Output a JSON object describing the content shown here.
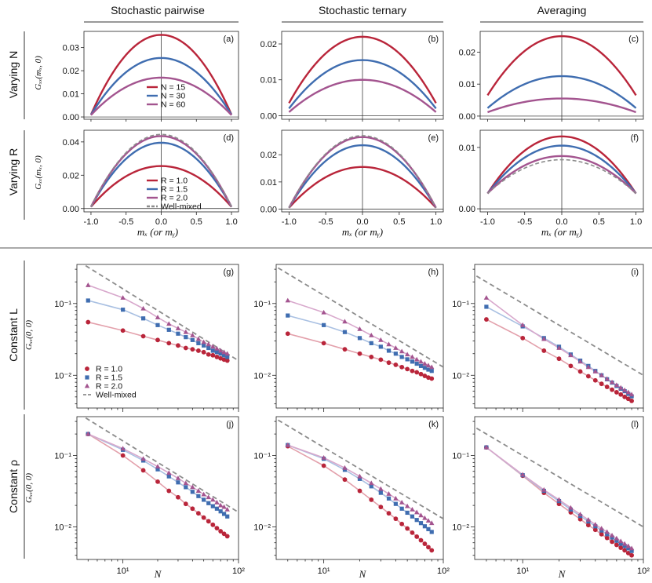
{
  "colors": {
    "red": "#b9253a",
    "blue": "#3f6db0",
    "purple": "#a3548f",
    "gray": "#8c8c8c",
    "lightred": "#e3a0ab",
    "lightblue": "#a9c0e2",
    "lightpurple": "#d8a8cc"
  },
  "columns": [
    "Stochastic pairwise",
    "Stochastic ternary",
    "Averaging"
  ],
  "rows": [
    "Varying N",
    "Varying R",
    "Constant L",
    "Constant ρ"
  ],
  "ylabels": {
    "top": "Gₓₓ(mₓ, 0)",
    "bottom": "Gₓₓ(0, 0)"
  },
  "xlabels": {
    "top": "mₓ (or mᵧ)",
    "bottom": "N"
  },
  "legends": {
    "varyingN": [
      "N = 15",
      "N = 30",
      "N = 60"
    ],
    "varyingR": [
      "R = 1.0",
      "R = 1.5",
      "R = 2.0",
      "Well-mixed"
    ],
    "bottom": [
      "R = 1.0",
      "R = 1.5",
      "R = 2.0",
      "Well-mixed"
    ]
  },
  "chart_data": [
    {
      "id": "a",
      "label": "(a)",
      "type": "line",
      "xlim": [
        -1.1,
        1.1
      ],
      "ylim": [
        -0.001,
        0.037
      ],
      "yticks": [
        0.0,
        0.01,
        0.02,
        0.03
      ],
      "ytick_labels": [
        "0.00",
        "0.01",
        "0.02",
        "0.03"
      ],
      "series": [
        {
          "name": "N = 15",
          "peak": 0.0355,
          "edge": 0.001
        },
        {
          "name": "N = 30",
          "peak": 0.0255,
          "edge": 0.001
        },
        {
          "name": "N = 60",
          "peak": 0.017,
          "edge": 0.0008
        }
      ]
    },
    {
      "id": "b",
      "label": "(b)",
      "type": "line",
      "xlim": [
        -1.1,
        1.1
      ],
      "ylim": [
        -0.001,
        0.0235
      ],
      "yticks": [
        0.0,
        0.01,
        0.02
      ],
      "ytick_labels": [
        "0.00",
        "0.01",
        "0.02"
      ],
      "series": [
        {
          "name": "N = 15",
          "peak": 0.022,
          "edge": 0.0035
        },
        {
          "name": "N = 30",
          "peak": 0.0155,
          "edge": 0.002
        },
        {
          "name": "N = 60",
          "peak": 0.01,
          "edge": 0.001
        }
      ]
    },
    {
      "id": "c",
      "label": "(c)",
      "type": "line",
      "xlim": [
        -1.1,
        1.1
      ],
      "ylim": [
        -0.001,
        0.0265
      ],
      "yticks": [
        0.0,
        0.01,
        0.02
      ],
      "ytick_labels": [
        "0.00",
        "0.01",
        "0.02"
      ],
      "series": [
        {
          "name": "N = 15",
          "peak": 0.025,
          "edge": 0.0065
        },
        {
          "name": "N = 30",
          "peak": 0.0125,
          "edge": 0.0025
        },
        {
          "name": "N = 60",
          "peak": 0.0055,
          "edge": 0.0012
        }
      ]
    },
    {
      "id": "d",
      "label": "(d)",
      "type": "line",
      "xlim": [
        -1.1,
        1.1
      ],
      "ylim": [
        -0.002,
        0.047
      ],
      "yticks": [
        0.0,
        0.02,
        0.04
      ],
      "ytick_labels": [
        "0.00",
        "0.02",
        "0.04"
      ],
      "series": [
        {
          "name": "R = 1.0",
          "peak": 0.0255,
          "edge": 0.001
        },
        {
          "name": "R = 1.5",
          "peak": 0.0395,
          "edge": 0.001
        },
        {
          "name": "R = 2.0",
          "peak": 0.0435,
          "edge": 0.001
        },
        {
          "name": "Well-mixed",
          "peak": 0.0445,
          "edge": 0.001
        }
      ]
    },
    {
      "id": "e",
      "label": "(e)",
      "type": "line",
      "xlim": [
        -1.1,
        1.1
      ],
      "ylim": [
        -0.001,
        0.029
      ],
      "yticks": [
        0.0,
        0.01,
        0.02
      ],
      "ytick_labels": [
        "0.00",
        "0.01",
        "0.02"
      ],
      "series": [
        {
          "name": "R = 1.0",
          "peak": 0.0155,
          "edge": 0.0005
        },
        {
          "name": "R = 1.5",
          "peak": 0.0235,
          "edge": 0.0005
        },
        {
          "name": "R = 2.0",
          "peak": 0.0265,
          "edge": 0.0005
        },
        {
          "name": "Well-mixed",
          "peak": 0.027,
          "edge": 0.0005
        }
      ]
    },
    {
      "id": "f",
      "label": "(f)",
      "type": "line",
      "xlim": [
        -1.1,
        1.1
      ],
      "ylim": [
        -0.0005,
        0.0128
      ],
      "yticks": [
        0.0,
        0.01
      ],
      "ytick_labels": [
        "0.00",
        "0.01"
      ],
      "series": [
        {
          "name": "R = 1.0",
          "peak": 0.0118,
          "edge": 0.0025
        },
        {
          "name": "R = 1.5",
          "peak": 0.0103,
          "edge": 0.0025
        },
        {
          "name": "R = 2.0",
          "peak": 0.0086,
          "edge": 0.0025
        },
        {
          "name": "Well-mixed",
          "peak": 0.008,
          "edge": 0.0025
        }
      ]
    },
    {
      "id": "g",
      "label": "(g)",
      "type": "scatter",
      "xlog": true,
      "ylog": true,
      "xlim": [
        4,
        100
      ],
      "ylim": [
        0.0035,
        0.35
      ],
      "ytick_labels": [
        "10⁻²",
        "10⁻¹"
      ],
      "xtick_labels": [
        "10¹",
        "10²"
      ],
      "x": [
        5,
        10,
        15,
        20,
        25,
        30,
        35,
        40,
        45,
        50,
        55,
        60,
        65,
        70,
        75,
        80
      ],
      "series": [
        {
          "name": "R = 1.0",
          "values": [
            0.055,
            0.042,
            0.035,
            0.031,
            0.028,
            0.026,
            0.024,
            0.023,
            0.022,
            0.021,
            0.0195,
            0.019,
            0.018,
            0.0172,
            0.0165,
            0.016
          ]
        },
        {
          "name": "R = 1.5",
          "values": [
            0.11,
            0.082,
            0.062,
            0.05,
            0.043,
            0.038,
            0.034,
            0.031,
            0.028,
            0.026,
            0.024,
            0.022,
            0.021,
            0.02,
            0.019,
            0.018
          ]
        },
        {
          "name": "R = 2.0",
          "values": [
            0.18,
            0.12,
            0.085,
            0.064,
            0.052,
            0.045,
            0.04,
            0.036,
            0.032,
            0.029,
            0.027,
            0.025,
            0.0235,
            0.022,
            0.021,
            0.02
          ]
        },
        {
          "name": "Well-mixed",
          "slope": -1,
          "coef": 1.6
        }
      ]
    },
    {
      "id": "h",
      "label": "(h)",
      "type": "scatter",
      "xlog": true,
      "ylog": true,
      "xlim": [
        4,
        100
      ],
      "ylim": [
        0.0035,
        0.35
      ],
      "ytick_labels": [
        "10⁻²",
        "10⁻¹"
      ],
      "xtick_labels": [
        "10¹",
        "10²"
      ],
      "x": [
        5,
        10,
        15,
        20,
        25,
        30,
        35,
        40,
        45,
        50,
        55,
        60,
        65,
        70,
        75,
        80
      ],
      "series": [
        {
          "name": "R = 1.0",
          "values": [
            0.038,
            0.028,
            0.023,
            0.02,
            0.018,
            0.0165,
            0.015,
            0.014,
            0.013,
            0.0122,
            0.0115,
            0.011,
            0.0104,
            0.0098,
            0.0093,
            0.009
          ]
        },
        {
          "name": "R = 1.5",
          "values": [
            0.068,
            0.05,
            0.04,
            0.033,
            0.028,
            0.025,
            0.022,
            0.02,
            0.018,
            0.0167,
            0.0155,
            0.0145,
            0.0135,
            0.0127,
            0.012,
            0.0115
          ]
        },
        {
          "name": "R = 2.0",
          "values": [
            0.11,
            0.075,
            0.056,
            0.044,
            0.036,
            0.031,
            0.027,
            0.024,
            0.0215,
            0.0195,
            0.018,
            0.0166,
            0.0155,
            0.0145,
            0.0137,
            0.013
          ]
        },
        {
          "name": "Well-mixed",
          "slope": -1,
          "coef": 1.3
        }
      ]
    },
    {
      "id": "i",
      "label": "(i)",
      "type": "scatter",
      "xlog": true,
      "ylog": true,
      "xlim": [
        4,
        100
      ],
      "ylim": [
        0.0035,
        0.35
      ],
      "ytick_labels": [
        "10⁻²",
        "10⁻¹"
      ],
      "xtick_labels": [
        "10¹",
        "10²"
      ],
      "x": [
        5,
        10,
        15,
        20,
        25,
        30,
        35,
        40,
        45,
        50,
        55,
        60,
        65,
        70,
        75,
        80
      ],
      "series": [
        {
          "name": "R = 1.0",
          "values": [
            0.06,
            0.033,
            0.022,
            0.017,
            0.0135,
            0.0113,
            0.0097,
            0.0085,
            0.0076,
            0.0069,
            0.0063,
            0.0058,
            0.0054,
            0.005,
            0.0047,
            0.0044
          ]
        },
        {
          "name": "R = 1.5",
          "values": [
            0.09,
            0.048,
            0.033,
            0.025,
            0.0195,
            0.016,
            0.0135,
            0.0115,
            0.01,
            0.0088,
            0.0079,
            0.0071,
            0.0065,
            0.006,
            0.0055,
            0.0051
          ]
        },
        {
          "name": "R = 2.0",
          "values": [
            0.12,
            0.05,
            0.032,
            0.024,
            0.019,
            0.0155,
            0.013,
            0.0113,
            0.01,
            0.0089,
            0.008,
            0.0073,
            0.0067,
            0.0062,
            0.0058,
            0.0054
          ]
        },
        {
          "name": "Well-mixed",
          "slope": -1,
          "coef": 1.0
        }
      ]
    },
    {
      "id": "j",
      "label": "(j)",
      "type": "scatter",
      "xlog": true,
      "ylog": true,
      "xlim": [
        4,
        100
      ],
      "ylim": [
        0.0035,
        0.35
      ],
      "ytick_labels": [
        "10⁻²",
        "10⁻¹"
      ],
      "xtick_labels": [
        "10¹",
        "10²"
      ],
      "x": [
        5,
        10,
        15,
        20,
        25,
        30,
        35,
        40,
        45,
        50,
        55,
        60,
        65,
        70,
        75,
        80
      ],
      "series": [
        {
          "name": "R = 1.0",
          "values": [
            0.2,
            0.1,
            0.062,
            0.043,
            0.032,
            0.026,
            0.021,
            0.018,
            0.0155,
            0.0135,
            0.012,
            0.0107,
            0.0096,
            0.0087,
            0.008,
            0.0074
          ]
        },
        {
          "name": "R = 1.5",
          "values": [
            0.2,
            0.12,
            0.085,
            0.064,
            0.051,
            0.042,
            0.036,
            0.031,
            0.027,
            0.024,
            0.0215,
            0.0195,
            0.018,
            0.0165,
            0.0152,
            0.014
          ]
        },
        {
          "name": "R = 2.0",
          "values": [
            0.2,
            0.125,
            0.09,
            0.07,
            0.057,
            0.048,
            0.041,
            0.036,
            0.032,
            0.0285,
            0.026,
            0.024,
            0.022,
            0.02,
            0.019,
            0.0175
          ]
        },
        {
          "name": "Well-mixed",
          "slope": -1,
          "coef": 1.6
        }
      ]
    },
    {
      "id": "k",
      "label": "(k)",
      "type": "scatter",
      "xlog": true,
      "ylog": true,
      "xlim": [
        4,
        100
      ],
      "ylim": [
        0.0035,
        0.35
      ],
      "ytick_labels": [
        "10⁻²",
        "10⁻¹"
      ],
      "xtick_labels": [
        "10¹",
        "10²"
      ],
      "x": [
        5,
        10,
        15,
        20,
        25,
        30,
        35,
        40,
        45,
        50,
        55,
        60,
        65,
        70,
        75,
        80
      ],
      "series": [
        {
          "name": "R = 1.0",
          "values": [
            0.135,
            0.072,
            0.046,
            0.032,
            0.024,
            0.019,
            0.0155,
            0.013,
            0.011,
            0.0095,
            0.0083,
            0.0073,
            0.0065,
            0.0058,
            0.0052,
            0.0047
          ]
        },
        {
          "name": "R = 1.5",
          "values": [
            0.14,
            0.09,
            0.063,
            0.047,
            0.037,
            0.03,
            0.025,
            0.021,
            0.018,
            0.0158,
            0.014,
            0.0125,
            0.0113,
            0.0102,
            0.0093,
            0.0085
          ]
        },
        {
          "name": "R = 2.0",
          "values": [
            0.14,
            0.093,
            0.067,
            0.051,
            0.041,
            0.034,
            0.029,
            0.025,
            0.022,
            0.0195,
            0.0175,
            0.016,
            0.0145,
            0.0133,
            0.0122,
            0.0113
          ]
        },
        {
          "name": "Well-mixed",
          "slope": -1,
          "coef": 1.3
        }
      ]
    },
    {
      "id": "l",
      "label": "(l)",
      "type": "scatter",
      "xlog": true,
      "ylog": true,
      "xlim": [
        4,
        100
      ],
      "ylim": [
        0.0035,
        0.35
      ],
      "ytick_labels": [
        "10⁻²",
        "10⁻¹"
      ],
      "xtick_labels": [
        "10¹",
        "10²"
      ],
      "x": [
        5,
        10,
        15,
        20,
        25,
        30,
        35,
        40,
        45,
        50,
        55,
        60,
        65,
        70,
        75,
        80
      ],
      "series": [
        {
          "name": "R = 1.0",
          "values": [
            0.13,
            0.052,
            0.03,
            0.021,
            0.016,
            0.0128,
            0.0106,
            0.0091,
            0.0079,
            0.007,
            0.0062,
            0.0056,
            0.0051,
            0.0047,
            0.0043,
            0.004
          ]
        },
        {
          "name": "R = 1.5",
          "values": [
            0.13,
            0.053,
            0.032,
            0.023,
            0.0175,
            0.0142,
            0.0119,
            0.0102,
            0.0089,
            0.0079,
            0.0071,
            0.0064,
            0.0058,
            0.0054,
            0.005,
            0.0046
          ]
        },
        {
          "name": "R = 2.0",
          "values": [
            0.13,
            0.054,
            0.033,
            0.024,
            0.0185,
            0.015,
            0.0126,
            0.0108,
            0.0095,
            0.0085,
            0.0076,
            0.0069,
            0.0063,
            0.0058,
            0.0054,
            0.005
          ]
        },
        {
          "name": "Well-mixed",
          "slope": -1,
          "coef": 1.0
        }
      ]
    }
  ]
}
